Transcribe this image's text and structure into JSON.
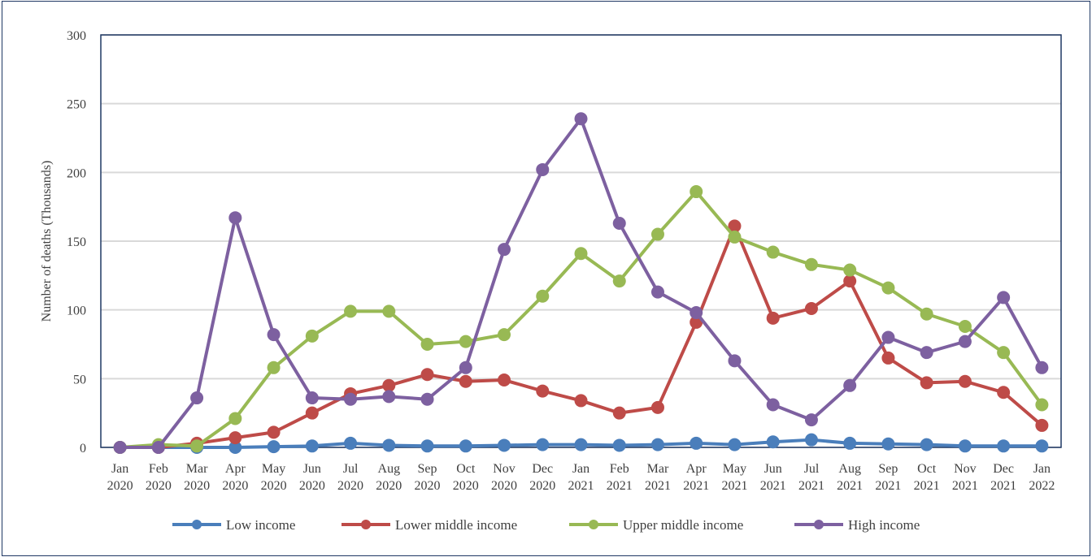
{
  "chart_data": {
    "type": "line",
    "title": "",
    "xlabel": "",
    "ylabel": "Number of deaths (Thousands)",
    "ylim": [
      0,
      300
    ],
    "yticks": [
      "0",
      "50",
      "100",
      "150",
      "200",
      "250",
      "300"
    ],
    "grid": true,
    "legend_position": "bottom",
    "categories": [
      {
        "month": "Jan",
        "year": "2020"
      },
      {
        "month": "Feb",
        "year": "2020"
      },
      {
        "month": "Mar",
        "year": "2020"
      },
      {
        "month": "Apr",
        "year": "2020"
      },
      {
        "month": "May",
        "year": "2020"
      },
      {
        "month": "Jun",
        "year": "2020"
      },
      {
        "month": "Jul",
        "year": "2020"
      },
      {
        "month": "Aug",
        "year": "2020"
      },
      {
        "month": "Sep",
        "year": "2020"
      },
      {
        "month": "Oct",
        "year": "2020"
      },
      {
        "month": "Nov",
        "year": "2020"
      },
      {
        "month": "Dec",
        "year": "2020"
      },
      {
        "month": "Jan",
        "year": "2021"
      },
      {
        "month": "Feb",
        "year": "2021"
      },
      {
        "month": "Mar",
        "year": "2021"
      },
      {
        "month": "Apr",
        "year": "2021"
      },
      {
        "month": "May",
        "year": "2021"
      },
      {
        "month": "Jun",
        "year": "2021"
      },
      {
        "month": "Jul",
        "year": "2021"
      },
      {
        "month": "Aug",
        "year": "2021"
      },
      {
        "month": "Sep",
        "year": "2021"
      },
      {
        "month": "Oct",
        "year": "2021"
      },
      {
        "month": "Nov",
        "year": "2021"
      },
      {
        "month": "Dec",
        "year": "2021"
      },
      {
        "month": "Jan",
        "year": "2022"
      }
    ],
    "series": [
      {
        "name": "Low  income",
        "color": "#4a7ebb",
        "values": [
          0,
          0,
          0,
          0,
          0.5,
          1,
          3,
          1.5,
          1,
          1,
          1.5,
          2,
          2,
          1.5,
          2,
          3,
          2,
          4,
          5.5,
          3,
          2.5,
          2,
          1,
          1,
          1
        ]
      },
      {
        "name": "Lower middle income",
        "color": "#be4b48",
        "values": [
          0,
          0,
          3,
          7,
          11,
          25,
          39,
          45,
          53,
          48,
          49,
          41,
          34,
          25,
          29,
          91,
          161,
          94,
          101,
          121,
          65,
          47,
          48,
          40,
          16
        ]
      },
      {
        "name": "Upper middle income",
        "color": "#98b954",
        "values": [
          0,
          2,
          1,
          21,
          58,
          81,
          99,
          99,
          75,
          77,
          82,
          110,
          141,
          121,
          155,
          186,
          153,
          142,
          133,
          129,
          116,
          97,
          88,
          69,
          31
        ]
      },
      {
        "name": "High income",
        "color": "#7d60a0",
        "values": [
          0,
          0,
          36,
          167,
          82,
          36,
          35,
          37,
          35,
          58,
          144,
          202,
          239,
          163,
          113,
          98,
          63,
          31,
          20,
          45,
          80,
          69,
          77,
          109,
          58
        ]
      }
    ]
  }
}
